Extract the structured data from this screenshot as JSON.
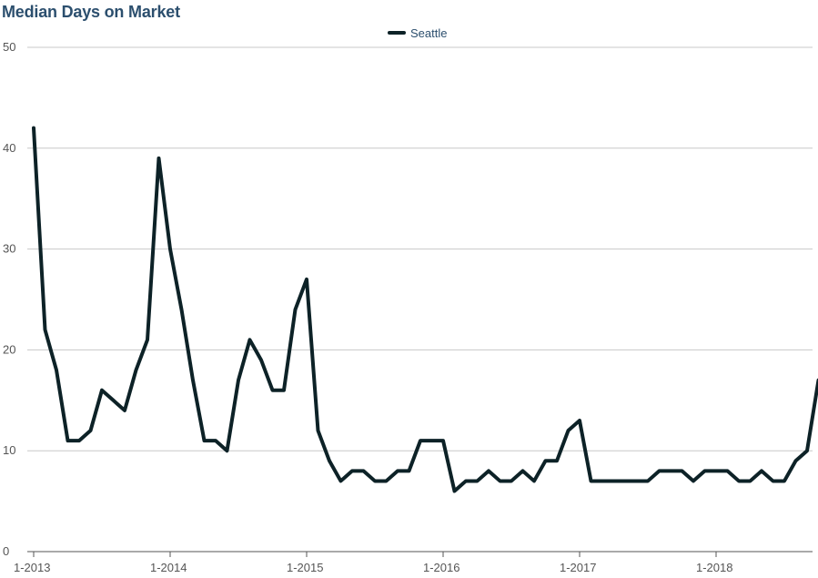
{
  "chart_data": {
    "type": "line",
    "title": "Median Days on Market",
    "xlabel": "",
    "ylabel": "",
    "ylim": [
      0,
      50
    ],
    "y_ticks": [
      0,
      10,
      20,
      30,
      40,
      50
    ],
    "x_tick_labels": [
      "1-2013",
      "1-2014",
      "1-2015",
      "1-2016",
      "1-2017",
      "1-2018"
    ],
    "x_start": "2013-01",
    "grid": "horizontal",
    "legend_position": "top-center",
    "series": [
      {
        "name": "Seattle",
        "color": "#0d2227",
        "values": [
          42,
          22,
          18,
          11,
          11,
          12,
          16,
          15,
          14,
          18,
          21,
          39,
          30,
          24,
          17,
          11,
          11,
          10,
          17,
          21,
          19,
          16,
          16,
          24,
          27,
          12,
          9,
          7,
          8,
          8,
          7,
          7,
          8,
          8,
          11,
          11,
          11,
          6,
          7,
          7,
          8,
          7,
          7,
          8,
          7,
          9,
          9,
          12,
          13,
          7,
          7,
          7,
          7,
          7,
          7,
          8,
          8,
          8,
          7,
          8,
          8,
          8,
          7,
          7,
          8,
          7,
          7,
          9,
          10,
          17
        ]
      }
    ]
  }
}
